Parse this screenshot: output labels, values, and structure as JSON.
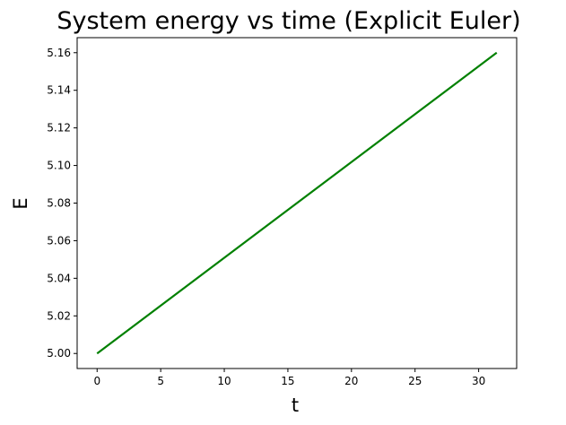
{
  "chart_data": {
    "type": "line",
    "title": "System energy vs time (Explicit Euler)",
    "xlabel": "t",
    "ylabel": "E",
    "xlim": [
      -1.57,
      32.99
    ],
    "ylim": [
      4.992,
      5.168
    ],
    "xticks": [
      0,
      5,
      10,
      15,
      20,
      25,
      30
    ],
    "xtick_labels": [
      "0",
      "5",
      "10",
      "15",
      "20",
      "25",
      "30"
    ],
    "yticks": [
      5.0,
      5.02,
      5.04,
      5.06,
      5.08,
      5.1,
      5.12,
      5.14,
      5.16
    ],
    "ytick_labels": [
      "5.00",
      "5.02",
      "5.04",
      "5.06",
      "5.08",
      "5.10",
      "5.12",
      "5.14",
      "5.16"
    ],
    "grid": false,
    "legend": "none",
    "series": [
      {
        "color": "#008000",
        "x": [
          0,
          31.42
        ],
        "y": [
          5.0,
          5.16
        ]
      }
    ]
  }
}
